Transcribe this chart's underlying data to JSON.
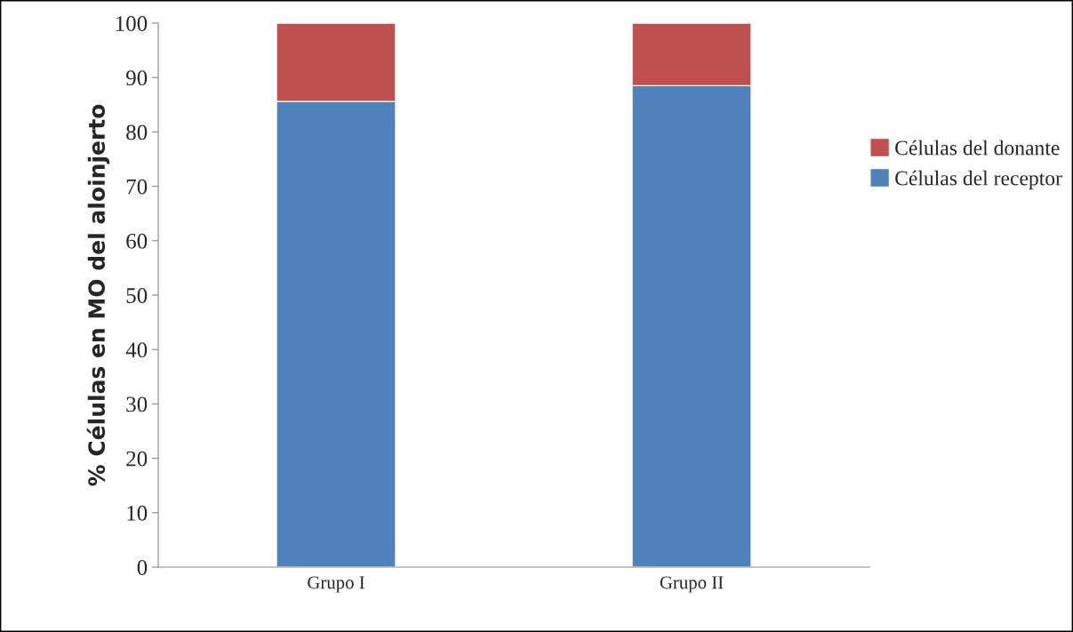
{
  "chart_data": {
    "type": "bar",
    "stacked": true,
    "ylabel": "% Células en MO del aloinjerto",
    "categories": [
      "Grupo I",
      "Grupo II"
    ],
    "series": [
      {
        "name": "Células del receptor",
        "color": "#4f81bd",
        "values": [
          85.6,
          88.5
        ]
      },
      {
        "name": "Células del donante",
        "color": "#c0504d",
        "values": [
          14.4,
          11.5
        ]
      }
    ],
    "ylim": [
      0,
      100
    ],
    "yticks": [
      0,
      10,
      20,
      30,
      40,
      50,
      60,
      70,
      80,
      90,
      100
    ],
    "legend": "right",
    "grid": false
  }
}
